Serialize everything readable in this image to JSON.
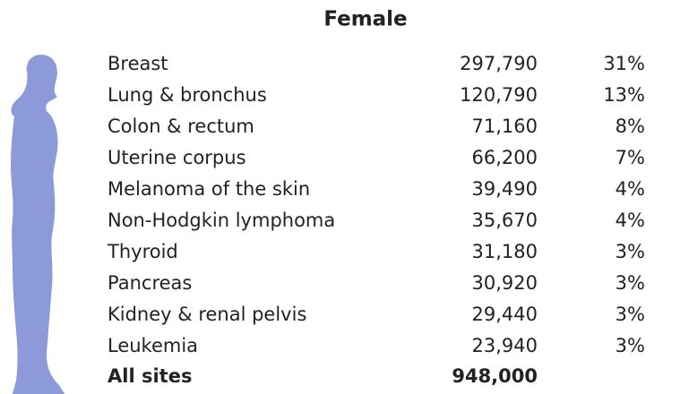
{
  "header": {
    "title": "Female"
  },
  "table": {
    "rows": [
      [
        "Breast",
        "297,790",
        "31%"
      ],
      [
        "Lung & bronchus",
        "120,790",
        "13%"
      ],
      [
        "Colon & rectum",
        "71,160",
        "8%"
      ],
      [
        "Uterine corpus",
        "66,200",
        "7%"
      ],
      [
        "Melanoma of the skin",
        "39,490",
        "4%"
      ],
      [
        "Non-Hodgkin lymphoma",
        "35,670",
        "4%"
      ],
      [
        "Thyroid",
        "31,180",
        "3%"
      ],
      [
        "Pancreas",
        "30,920",
        "3%"
      ],
      [
        "Kidney & renal pelvis",
        "29,440",
        "3%"
      ],
      [
        "Leukemia",
        "23,940",
        "3%"
      ]
    ],
    "total": [
      "All sites",
      "948,000"
    ]
  }
}
